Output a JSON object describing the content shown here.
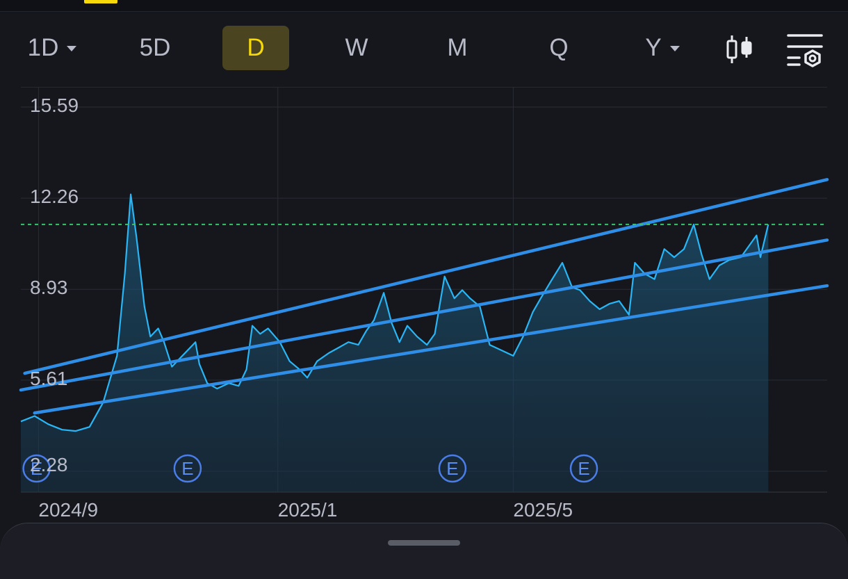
{
  "toolbar": {
    "timeframes": [
      {
        "label": "1D",
        "has_dropdown": true,
        "active": false
      },
      {
        "label": "5D",
        "has_dropdown": false,
        "active": false
      },
      {
        "label": "D",
        "has_dropdown": false,
        "active": true
      },
      {
        "label": "W",
        "has_dropdown": false,
        "active": false
      },
      {
        "label": "M",
        "has_dropdown": false,
        "active": false
      },
      {
        "label": "Q",
        "has_dropdown": false,
        "active": false
      },
      {
        "label": "Y",
        "has_dropdown": true,
        "active": false
      }
    ],
    "icons": [
      "candlestick-chart-icon",
      "chart-settings-icon"
    ]
  },
  "colors": {
    "price_line": "#29b6f6",
    "trend_line": "#2f8fe8",
    "reference_line": "#3fbf6f",
    "active_tab_bg": "#4a4420",
    "active_tab_text": "#f5d90a",
    "earnings_marker": "#4a7de8"
  },
  "chart_data": {
    "type": "area",
    "title": "",
    "xlabel": "",
    "ylabel": "",
    "ylim": [
      2.28,
      15.59
    ],
    "y_ticks": [
      "15.59",
      "12.26",
      "8.93",
      "5.61",
      "2.28"
    ],
    "x_ticks": [
      {
        "label": "2024/9",
        "date": "2024-09-01"
      },
      {
        "label": "2025/1",
        "date": "2025-01-01"
      },
      {
        "label": "2025/5",
        "date": "2025-05-01"
      }
    ],
    "x_range": [
      "2024-08-23",
      "2025-10-08"
    ],
    "grid": true,
    "reference_line": {
      "y": 11.3,
      "style": "dashed"
    },
    "series": [
      {
        "points": [
          [
            "2024-08-23",
            4.1
          ],
          [
            "2024-08-30",
            4.3
          ],
          [
            "2024-09-06",
            4.0
          ],
          [
            "2024-09-13",
            3.8
          ],
          [
            "2024-09-20",
            3.75
          ],
          [
            "2024-09-27",
            3.9
          ],
          [
            "2024-10-04",
            4.8
          ],
          [
            "2024-10-11",
            6.5
          ],
          [
            "2024-10-15",
            9.5
          ],
          [
            "2024-10-18",
            12.4
          ],
          [
            "2024-10-21",
            10.8
          ],
          [
            "2024-10-25",
            8.3
          ],
          [
            "2024-10-28",
            7.2
          ],
          [
            "2024-11-01",
            7.5
          ],
          [
            "2024-11-04",
            7.0
          ],
          [
            "2024-11-08",
            6.1
          ],
          [
            "2024-11-12",
            6.4
          ],
          [
            "2024-11-16",
            6.7
          ],
          [
            "2024-11-20",
            7.0
          ],
          [
            "2024-11-22",
            6.2
          ],
          [
            "2024-11-26",
            5.5
          ],
          [
            "2024-12-01",
            5.3
          ],
          [
            "2024-12-07",
            5.5
          ],
          [
            "2024-12-12",
            5.4
          ],
          [
            "2024-12-16",
            6.0
          ],
          [
            "2024-12-19",
            7.6
          ],
          [
            "2024-12-23",
            7.3
          ],
          [
            "2024-12-27",
            7.5
          ],
          [
            "2025-01-02",
            7.0
          ],
          [
            "2025-01-07",
            6.3
          ],
          [
            "2025-01-12",
            6.0
          ],
          [
            "2025-01-16",
            5.7
          ],
          [
            "2025-01-21",
            6.3
          ],
          [
            "2025-01-27",
            6.6
          ],
          [
            "2025-02-01",
            6.8
          ],
          [
            "2025-02-06",
            7.0
          ],
          [
            "2025-02-11",
            6.9
          ],
          [
            "2025-02-15",
            7.4
          ],
          [
            "2025-02-19",
            7.8
          ],
          [
            "2025-02-24",
            8.8
          ],
          [
            "2025-02-28",
            7.7
          ],
          [
            "2025-03-04",
            7.0
          ],
          [
            "2025-03-08",
            7.6
          ],
          [
            "2025-03-13",
            7.2
          ],
          [
            "2025-03-18",
            6.9
          ],
          [
            "2025-03-22",
            7.3
          ],
          [
            "2025-03-27",
            9.4
          ],
          [
            "2025-04-01",
            8.6
          ],
          [
            "2025-04-05",
            8.9
          ],
          [
            "2025-04-09",
            8.6
          ],
          [
            "2025-04-14",
            8.3
          ],
          [
            "2025-04-19",
            6.9
          ],
          [
            "2025-04-25",
            6.7
          ],
          [
            "2025-05-01",
            6.5
          ],
          [
            "2025-05-06",
            7.2
          ],
          [
            "2025-05-11",
            8.1
          ],
          [
            "2025-05-15",
            8.6
          ],
          [
            "2025-05-20",
            9.2
          ],
          [
            "2025-05-26",
            9.9
          ],
          [
            "2025-05-31",
            9.0
          ],
          [
            "2025-06-04",
            8.9
          ],
          [
            "2025-06-09",
            8.5
          ],
          [
            "2025-06-14",
            8.2
          ],
          [
            "2025-06-19",
            8.4
          ],
          [
            "2025-06-24",
            8.5
          ],
          [
            "2025-06-29",
            8.0
          ],
          [
            "2025-07-02",
            9.9
          ],
          [
            "2025-07-07",
            9.5
          ],
          [
            "2025-07-12",
            9.3
          ],
          [
            "2025-07-17",
            10.4
          ],
          [
            "2025-07-22",
            10.1
          ],
          [
            "2025-07-27",
            10.4
          ],
          [
            "2025-08-01",
            11.3
          ],
          [
            "2025-08-05",
            10.2
          ],
          [
            "2025-08-09",
            9.3
          ],
          [
            "2025-08-14",
            9.8
          ],
          [
            "2025-08-19",
            10.0
          ],
          [
            "2025-08-25",
            10.1
          ],
          [
            "2025-08-29",
            10.5
          ],
          [
            "2025-09-02",
            10.9
          ],
          [
            "2025-09-04",
            10.1
          ],
          [
            "2025-09-08",
            11.3
          ]
        ]
      }
    ],
    "trendlines": [
      {
        "start": [
          "2024-08-25",
          5.86
        ],
        "end": [
          "2025-10-08",
          12.94
        ]
      },
      {
        "start": [
          "2024-08-23",
          5.25
        ],
        "end": [
          "2025-10-08",
          10.73
        ]
      },
      {
        "start": [
          "2024-08-30",
          4.41
        ],
        "end": [
          "2025-10-08",
          9.06
        ]
      }
    ],
    "event_markers": [
      {
        "label": "E",
        "date": "2024-08-31"
      },
      {
        "label": "E",
        "date": "2024-11-16"
      },
      {
        "label": "E",
        "date": "2025-03-31"
      },
      {
        "label": "E",
        "date": "2025-06-06"
      }
    ]
  }
}
